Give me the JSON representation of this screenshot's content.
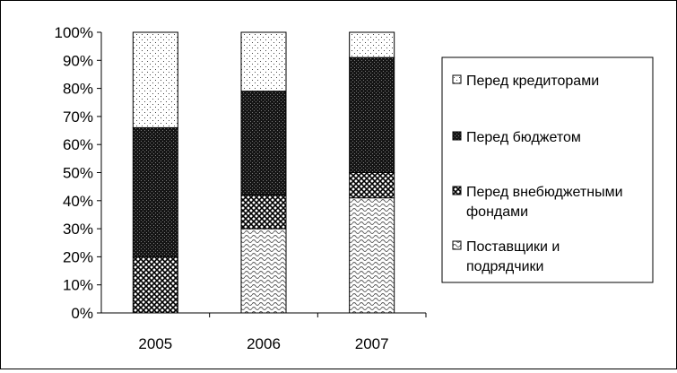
{
  "chart_data": {
    "type": "bar",
    "stacked": true,
    "normalized": true,
    "categories": [
      "2005",
      "2006",
      "2007"
    ],
    "series": [
      {
        "name": "Поставщики и подрядчики",
        "values": [
          0,
          30,
          41
        ],
        "pattern": "waves"
      },
      {
        "name": "Перед внебюджетными фондами",
        "values": [
          20,
          12,
          9
        ],
        "pattern": "cross"
      },
      {
        "name": "Перед бюджетом",
        "values": [
          46,
          37,
          41
        ],
        "pattern": "dark"
      },
      {
        "name": "Перед кредиторами",
        "values": [
          34,
          21,
          9
        ],
        "pattern": "dots"
      }
    ],
    "y_ticks": [
      "0%",
      "10%",
      "20%",
      "30%",
      "40%",
      "50%",
      "60%",
      "70%",
      "80%",
      "90%",
      "100%"
    ],
    "ylim": [
      0,
      100
    ],
    "legend_position": "right",
    "legend_order": [
      3,
      2,
      1,
      0
    ],
    "legend_lines": [
      [
        "Перед кредиторами"
      ],
      [
        "Перед бюджетом"
      ],
      [
        "Перед внебюджетными",
        "фондами"
      ],
      [
        "Поставщики и",
        "подрядчики"
      ]
    ],
    "grid": false,
    "title": "",
    "xlabel": "",
    "ylabel": ""
  }
}
